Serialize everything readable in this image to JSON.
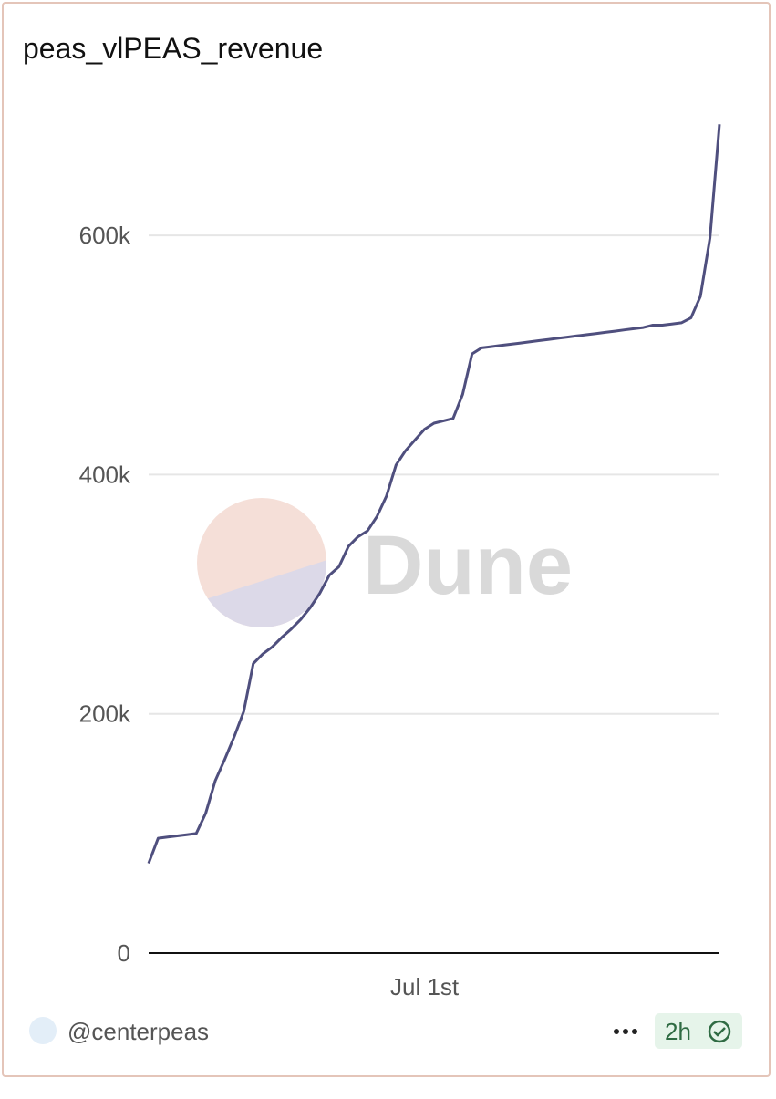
{
  "chart_data": {
    "type": "line",
    "title": "peas_vlPEAS_revenue",
    "categories": [
      null,
      null,
      null,
      null,
      null,
      null,
      null,
      null,
      null,
      null,
      null,
      null,
      null,
      null,
      null,
      null,
      null,
      null,
      null,
      null,
      null,
      null,
      null,
      null,
      null,
      null,
      null,
      null,
      null,
      "Jul 1st",
      null,
      null,
      null,
      null,
      null,
      null,
      null,
      null,
      null,
      null,
      null,
      null,
      null,
      null,
      null,
      null,
      null,
      null,
      null,
      null,
      null,
      null,
      null,
      null,
      null,
      null,
      null,
      null,
      null,
      null,
      null
    ],
    "values": [
      75000,
      96000,
      97000,
      98000,
      99000,
      100000,
      117000,
      144000,
      162000,
      181000,
      202000,
      242000,
      250000,
      256000,
      264000,
      271000,
      279000,
      289000,
      301000,
      316000,
      323000,
      340000,
      348000,
      353000,
      365000,
      382000,
      408000,
      420000,
      429000,
      438000,
      443000,
      445000,
      447000,
      467000,
      501000,
      506000,
      507000,
      508000,
      509000,
      510000,
      511000,
      512000,
      513000,
      514000,
      515000,
      516000,
      517000,
      518000,
      519000,
      520000,
      521000,
      522000,
      523000,
      525000,
      525000,
      526000,
      527000,
      531000,
      549000,
      598000,
      693000
    ],
    "color": "#4f4f7e",
    "ylim": [
      0,
      700000
    ],
    "yticks": [
      0,
      {
        "value": 200000,
        "label": "200k"
      },
      {
        "value": 400000,
        "label": "400k"
      },
      {
        "value": 600000,
        "label": "600k"
      }
    ],
    "grid": true
  },
  "card": {
    "watermark": "Dune",
    "author": "@centerpeas",
    "age": "2h"
  }
}
